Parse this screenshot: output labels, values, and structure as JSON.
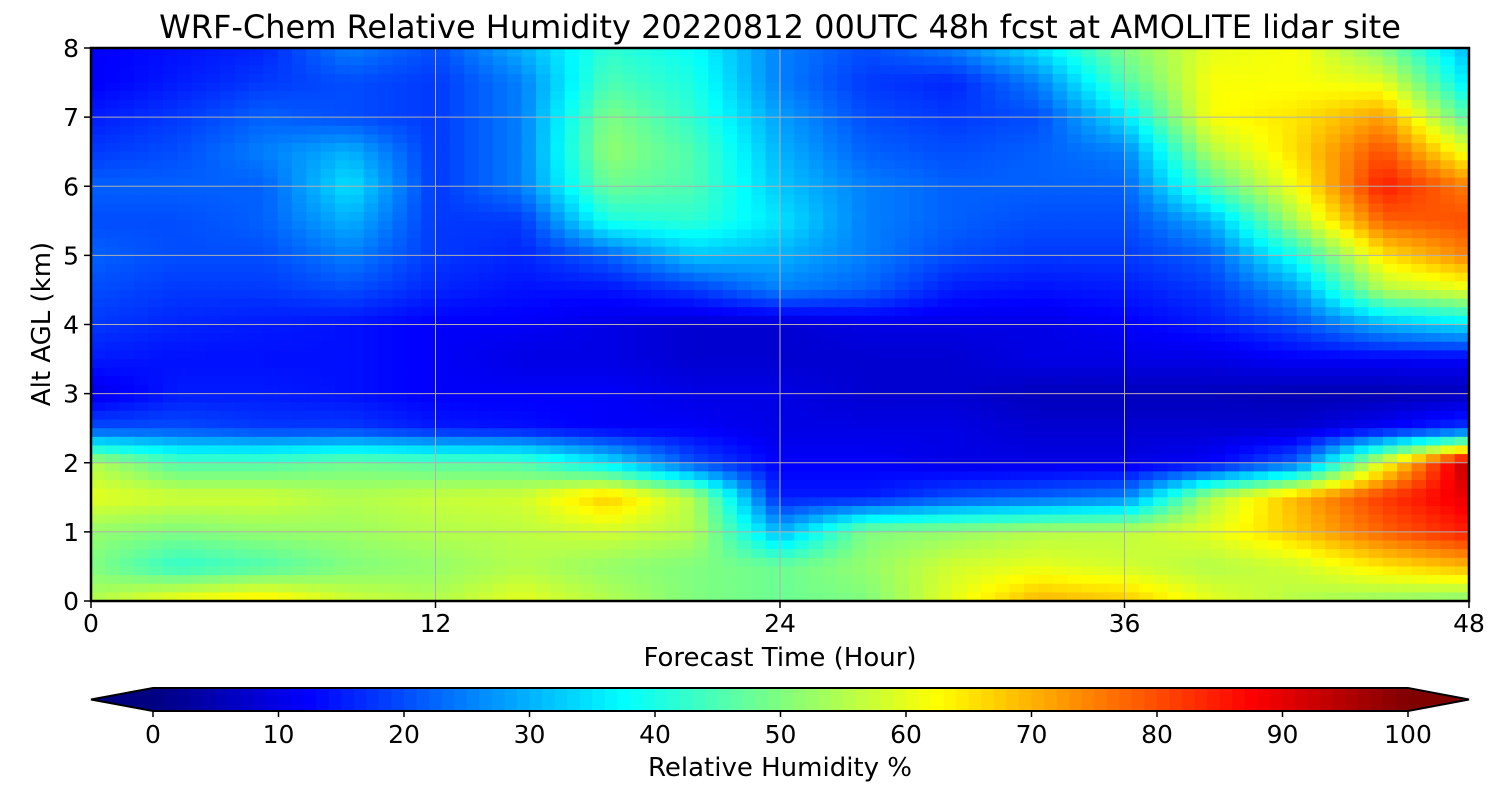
{
  "chart_data": {
    "type": "heatmap",
    "title": "WRF-Chem Relative Humidity 20220812 00UTC 48h fcst at AMOLITE lidar site",
    "xlabel": "Forecast Time (Hour)",
    "ylabel": "Alt AGL (km)",
    "xlim": [
      0,
      48
    ],
    "ylim": [
      0,
      8
    ],
    "x_ticks": [
      "0",
      "12",
      "24",
      "36",
      "48"
    ],
    "y_ticks": [
      "0",
      "1",
      "2",
      "3",
      "4",
      "5",
      "6",
      "7",
      "8"
    ],
    "grid": true,
    "x": [
      0,
      3,
      6,
      9,
      12,
      15,
      18,
      21,
      24,
      27,
      30,
      33,
      36,
      39,
      42,
      45,
      48
    ],
    "y": [
      0,
      0.5,
      1,
      1.5,
      2,
      2.5,
      3,
      3.5,
      4,
      4.5,
      5,
      5.5,
      6,
      6.5,
      7,
      7.5,
      8
    ],
    "z": [
      [
        55,
        62,
        65,
        58,
        55,
        60,
        55,
        50,
        48,
        50,
        60,
        70,
        68,
        60,
        55,
        52,
        50
      ],
      [
        50,
        42,
        45,
        50,
        52,
        55,
        52,
        50,
        48,
        52,
        58,
        60,
        58,
        55,
        58,
        65,
        70
      ],
      [
        52,
        50,
        52,
        53,
        55,
        56,
        58,
        55,
        30,
        50,
        52,
        55,
        56,
        60,
        68,
        78,
        85
      ],
      [
        60,
        58,
        58,
        55,
        57,
        58,
        68,
        55,
        15,
        15,
        20,
        22,
        25,
        55,
        70,
        82,
        90
      ],
      [
        55,
        45,
        45,
        48,
        46,
        45,
        35,
        20,
        12,
        12,
        10,
        10,
        10,
        12,
        22,
        60,
        95
      ],
      [
        20,
        20,
        18,
        18,
        15,
        14,
        12,
        12,
        10,
        10,
        10,
        8,
        8,
        8,
        8,
        12,
        18
      ],
      [
        10,
        15,
        15,
        14,
        12,
        12,
        12,
        10,
        10,
        8,
        8,
        6,
        6,
        6,
        5,
        5,
        6
      ],
      [
        15,
        14,
        14,
        14,
        12,
        10,
        10,
        8,
        8,
        8,
        8,
        10,
        10,
        10,
        12,
        12,
        12
      ],
      [
        18,
        16,
        15,
        14,
        12,
        12,
        10,
        8,
        8,
        10,
        10,
        10,
        12,
        15,
        20,
        30,
        35
      ],
      [
        20,
        18,
        18,
        20,
        16,
        14,
        14,
        18,
        25,
        22,
        15,
        14,
        15,
        18,
        28,
        55,
        60
      ],
      [
        22,
        20,
        20,
        25,
        18,
        16,
        22,
        32,
        30,
        25,
        20,
        18,
        18,
        22,
        40,
        65,
        75
      ],
      [
        20,
        20,
        22,
        30,
        18,
        18,
        40,
        42,
        35,
        25,
        22,
        20,
        20,
        30,
        55,
        78,
        80
      ],
      [
        22,
        22,
        22,
        35,
        18,
        25,
        48,
        45,
        32,
        25,
        22,
        22,
        22,
        45,
        62,
        85,
        75
      ],
      [
        18,
        20,
        25,
        30,
        18,
        25,
        52,
        45,
        30,
        22,
        20,
        22,
        25,
        55,
        66,
        80,
        60
      ],
      [
        15,
        18,
        22,
        20,
        18,
        25,
        50,
        42,
        28,
        20,
        18,
        20,
        35,
        62,
        65,
        72,
        45
      ],
      [
        12,
        15,
        18,
        20,
        18,
        25,
        45,
        40,
        25,
        18,
        16,
        25,
        45,
        62,
        62,
        60,
        35
      ],
      [
        12,
        14,
        16,
        25,
        20,
        30,
        42,
        38,
        25,
        20,
        25,
        35,
        50,
        60,
        62,
        50,
        30
      ]
    ],
    "colorbar": {
      "label": "Relative Humidity %",
      "ticks": [
        "0",
        "10",
        "20",
        "30",
        "40",
        "50",
        "60",
        "70",
        "80",
        "90",
        "100"
      ],
      "range": [
        0,
        100
      ],
      "colormap": "jet",
      "extend": "both"
    }
  }
}
